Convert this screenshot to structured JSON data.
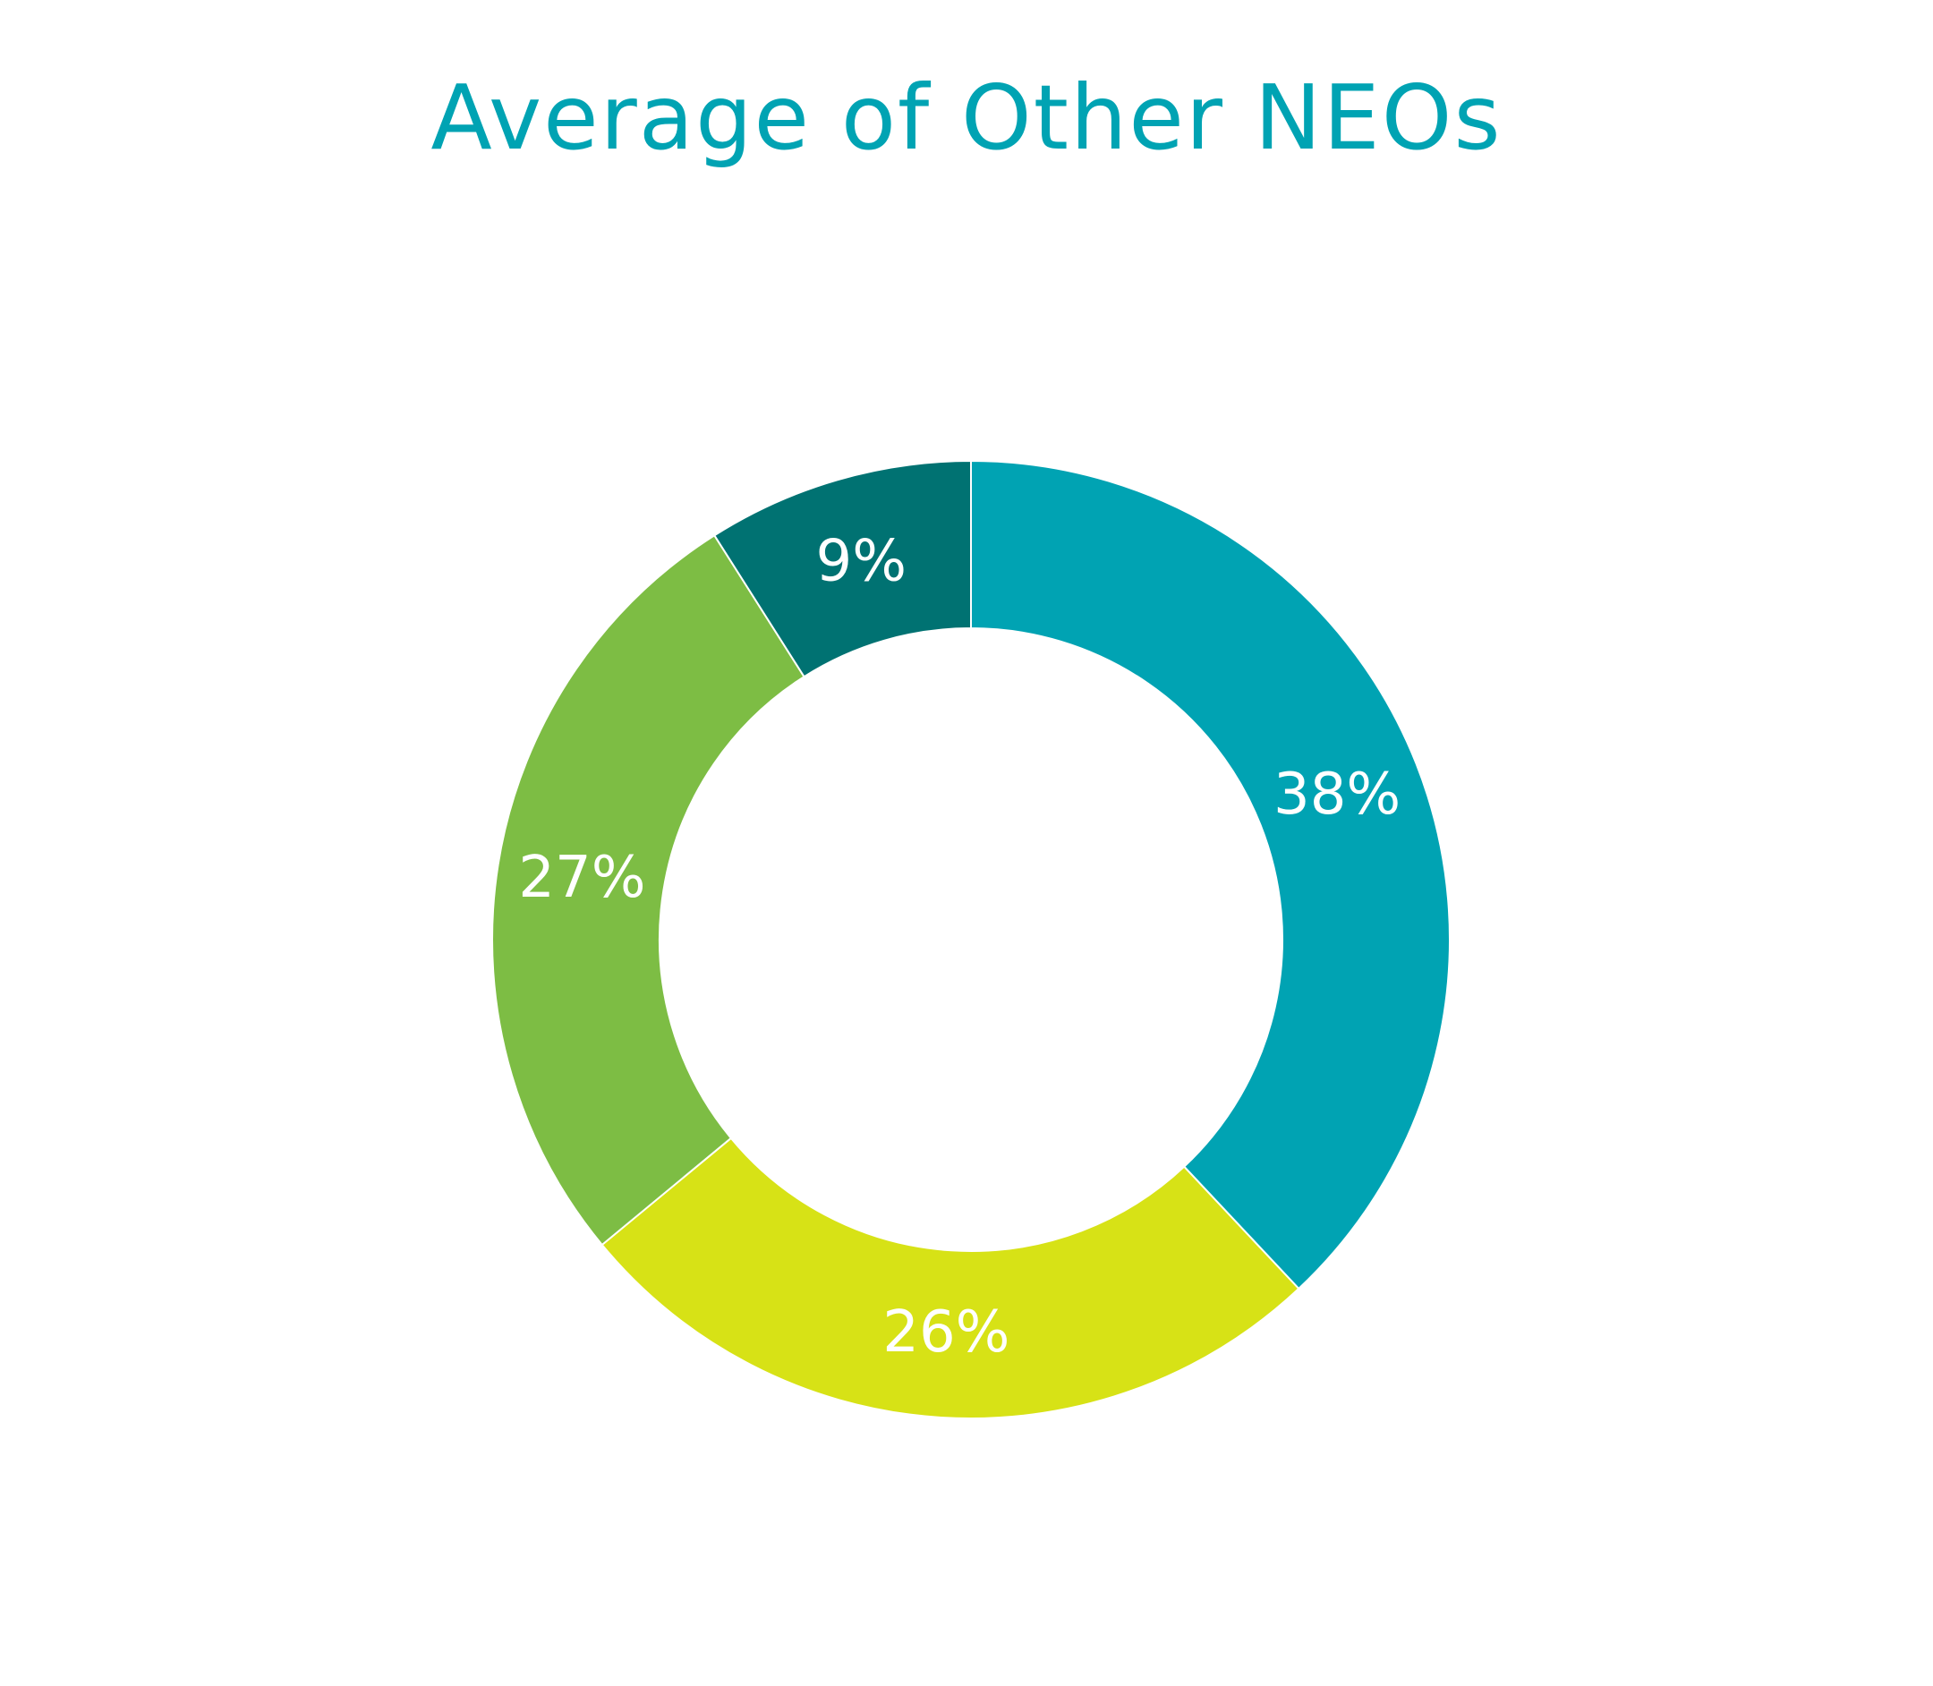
{
  "chart_data": {
    "type": "pie",
    "title": "Average of Other NEOs",
    "donut": true,
    "categories": [
      "",
      "",
      "",
      ""
    ],
    "values": [
      38,
      26,
      27,
      9
    ],
    "labels": [
      "38%",
      "26%",
      "27%",
      "9%"
    ],
    "colors": [
      "#00a3b3",
      "#d7e216",
      "#7dbd44",
      "#007272"
    ],
    "separator_color": "#ffffff",
    "legend": "none"
  }
}
